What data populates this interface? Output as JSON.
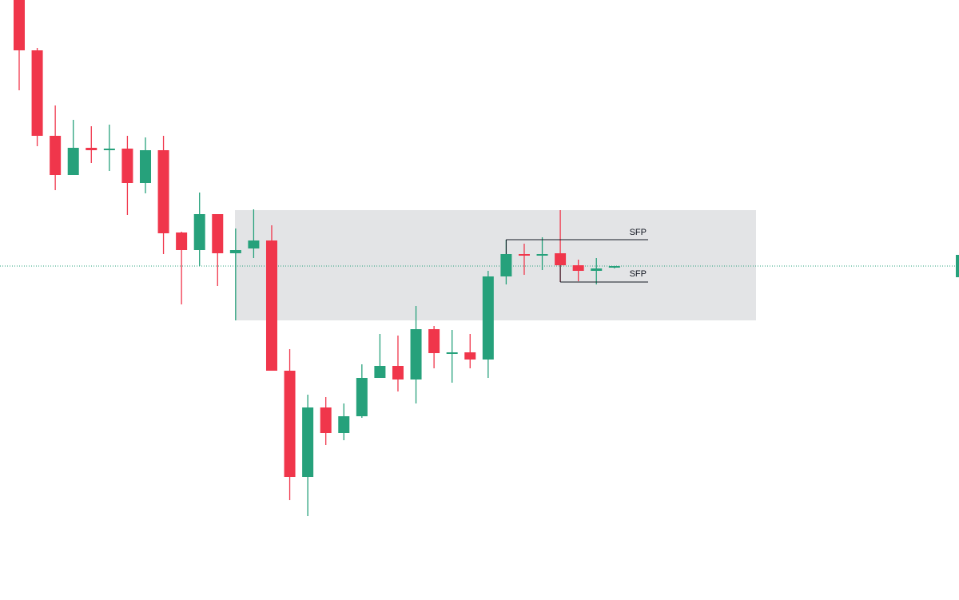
{
  "chart_data": {
    "type": "candlestick",
    "open": [
      750,
      687,
      580,
      531,
      565,
      563,
      564,
      521,
      562,
      459,
      437,
      482,
      433,
      439,
      449,
      286,
      153,
      240,
      208,
      229,
      277,
      292,
      275,
      338,
      308,
      309,
      300,
      404,
      432,
      431,
      433,
      418,
      411,
      415
    ],
    "high": [
      750,
      690,
      618,
      600,
      592,
      594,
      580,
      578,
      580,
      460,
      509,
      482,
      464,
      488,
      468,
      313,
      256,
      253,
      245,
      294,
      332,
      330,
      367,
      342,
      337,
      332,
      411,
      450,
      445,
      453,
      487,
      425,
      427,
      417
    ],
    "low": [
      637,
      567,
      512,
      531,
      546,
      536,
      481,
      508,
      432,
      369,
      417,
      392,
      349,
      427,
      286,
      124,
      104,
      193,
      199,
      227,
      277,
      260,
      245,
      289,
      271,
      289,
      277,
      394,
      406,
      412,
      397,
      398,
      394,
      414
    ],
    "close": [
      687,
      580,
      531,
      565,
      562,
      564,
      521,
      562,
      458,
      437,
      482,
      433,
      437,
      449,
      286,
      153,
      240,
      208,
      229,
      277,
      292,
      275,
      338,
      308,
      309,
      300,
      404,
      432,
      431,
      432,
      418,
      411,
      414,
      417
    ],
    "up_color": "#26a17b",
    "down_color": "#f0364b",
    "ylim": [
      0,
      750
    ],
    "zone": [
      487,
      349
    ],
    "zone_color": "#e3e4e6",
    "last_price": 417,
    "annotations": [
      {
        "text": "SFP",
        "value": 450,
        "anchor": "high"
      },
      {
        "text": "SFP",
        "value": 397,
        "anchor": "low"
      }
    ]
  }
}
